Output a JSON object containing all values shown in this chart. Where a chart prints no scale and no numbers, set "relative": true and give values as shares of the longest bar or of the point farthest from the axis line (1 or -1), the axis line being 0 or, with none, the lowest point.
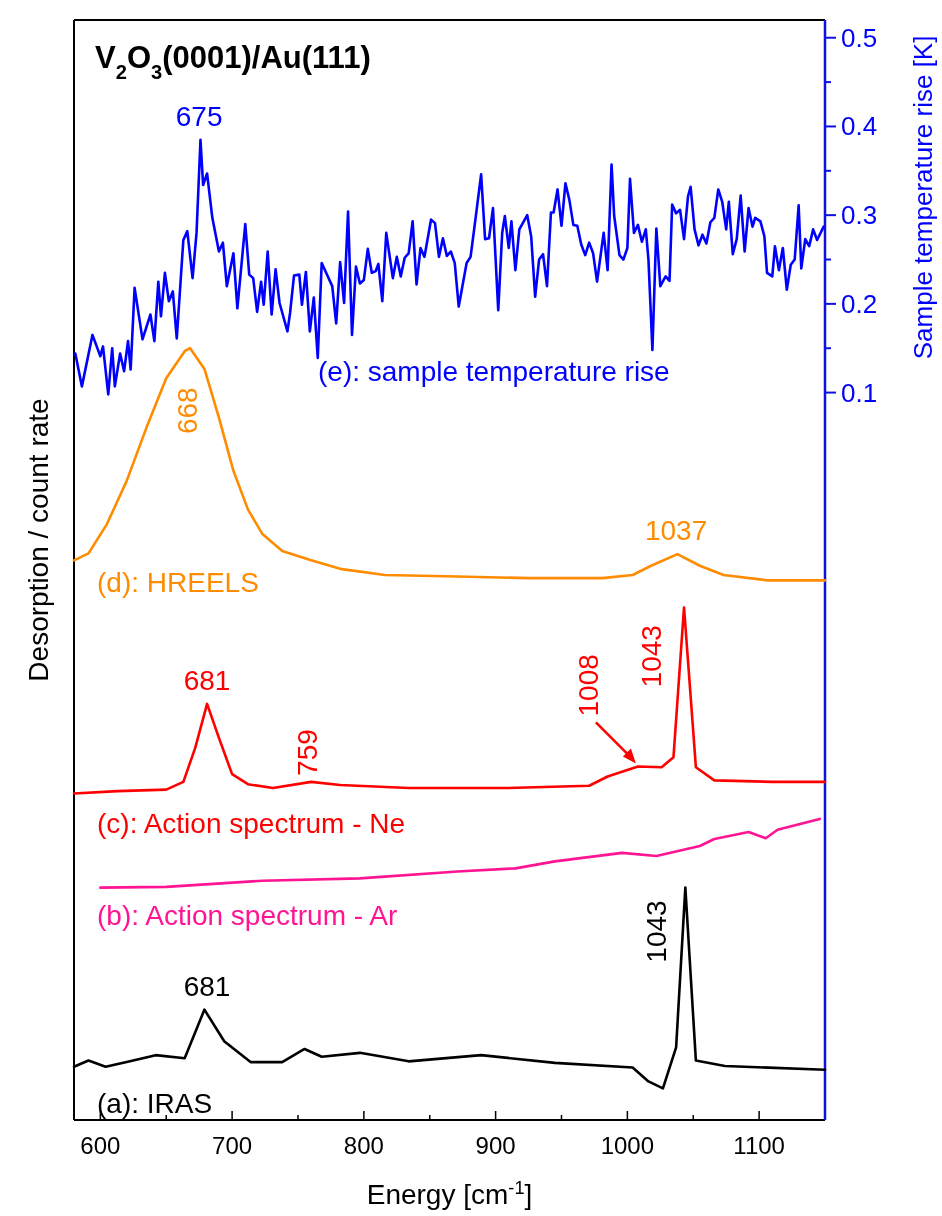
{
  "chart_data": {
    "type": "line",
    "title": "V$_{2}$O$_{3}$(0001)/Au(111)",
    "xlabel": "Energy [cm$^{-1}$]",
    "ylabel": "Desorption / count rate",
    "y2label": "Sample temperature rise [K]",
    "relative": true,
    "xlim": [
      580,
      1150
    ],
    "xticks": [
      600,
      {
        "value": 650,
        "label": null
      },
      700,
      {
        "value": 750,
        "label": null
      },
      800,
      {
        "value": 850,
        "label": null
      },
      900,
      {
        "value": 950,
        "label": null
      },
      1000,
      {
        "value": 1050,
        "label": null
      },
      1100
    ],
    "y2lim": [
      -0.72,
      0.52
    ],
    "y2ticks": [
      0.1,
      {
        "value": 0.15,
        "label": null
      },
      0.2,
      {
        "value": 0.25,
        "label": null
      },
      0.3,
      {
        "value": 0.35,
        "label": null
      },
      0.4,
      {
        "value": 0.45,
        "label": null
      },
      0.5
    ],
    "grid": false,
    "legend": false,
    "marker": "none",
    "line_style": "solid",
    "series": [
      {
        "name": "(a): IRAS",
        "color": "#000000",
        "x": [
          580,
          591,
          604,
          620,
          642,
          664,
          679,
          694,
          714,
          738,
          755,
          768,
          797,
          834,
          889,
          945,
          1004,
          1016,
          1027,
          1037,
          1044,
          1052,
          1074,
          1150
        ],
        "values": [
          0.069,
          0.077,
          0.069,
          0.075,
          0.084,
          0.08,
          0.143,
          0.102,
          0.075,
          0.075,
          0.092,
          0.082,
          0.087,
          0.076,
          0.084,
          0.074,
          0.068,
          0.05,
          0.041,
          0.094,
          0.301,
          0.077,
          0.07,
          0.065
        ]
      },
      {
        "name": "(b): Action spectrum - Ar",
        "color": "#ff1493",
        "x": [
          600,
          650,
          723,
          797,
          871,
          915,
          945,
          996,
          1022,
          1055,
          1066,
          1092,
          1105,
          1114,
          1146
        ],
        "values": [
          0.301,
          0.302,
          0.31,
          0.313,
          0.322,
          0.326,
          0.335,
          0.346,
          0.342,
          0.355,
          0.364,
          0.373,
          0.365,
          0.376,
          0.39
        ]
      },
      {
        "name": "(c): Action spectrum - Ne",
        "color": "#ff0000",
        "x": [
          580,
          613,
          650,
          663,
          672,
          681,
          690,
          700,
          712,
          731,
          760,
          782,
          834,
          908,
          971,
          985,
          1008,
          1026,
          1035,
          1043,
          1052,
          1066,
          1110,
          1150
        ],
        "values": [
          0.423,
          0.426,
          0.428,
          0.438,
          0.482,
          0.539,
          0.495,
          0.448,
          0.435,
          0.43,
          0.438,
          0.434,
          0.43,
          0.43,
          0.433,
          0.445,
          0.458,
          0.457,
          0.47,
          0.664,
          0.457,
          0.44,
          0.438,
          0.438
        ]
      },
      {
        "name": "(d): HREELS",
        "color": "#ff8c00",
        "x": [
          580,
          591,
          605,
          620,
          635,
          650,
          664,
          668,
          679,
          690,
          701,
          712,
          723,
          738,
          760,
          782,
          816,
          871,
          926,
          981,
          1004,
          1018,
          1038,
          1055,
          1073,
          1107,
          1150
        ],
        "values": [
          0.725,
          0.734,
          0.772,
          0.828,
          0.897,
          0.961,
          0.996,
          1,
          0.973,
          0.91,
          0.841,
          0.791,
          0.759,
          0.737,
          0.725,
          0.714,
          0.706,
          0.704,
          0.702,
          0.702,
          0.706,
          0.718,
          0.733,
          0.718,
          0.706,
          0.699,
          0.699
        ]
      },
      {
        "name": "(e): sample temperature rise",
        "color": "#0000ff",
        "axis": "y2",
        "x": [
          581,
          586,
          594,
          600,
          602,
          606,
          609,
          611,
          615,
          618,
          621,
          623,
          626,
          632,
          638,
          641,
          644,
          646,
          649,
          652,
          655,
          658,
          663,
          666,
          670,
          673,
          676,
          678,
          681,
          685,
          690,
          693,
          696,
          701,
          704,
          710,
          713,
          716,
          719,
          722,
          724,
          727,
          730,
          733,
          736,
          742,
          744,
          747,
          751,
          753,
          756,
          759,
          762,
          765,
          768,
          776,
          779,
          782,
          785,
          788,
          791,
          794,
          797,
          800,
          803,
          806,
          809,
          811,
          814,
          817,
          822,
          825,
          828,
          831,
          834,
          837,
          840,
          843,
          846,
          851,
          854,
          857,
          860,
          863,
          866,
          869,
          872,
          878,
          881,
          885,
          889,
          892,
          895,
          898,
          902,
          905,
          907,
          910,
          912,
          915,
          918,
          924,
          927,
          930,
          933,
          936,
          939,
          942,
          944,
          947,
          950,
          953,
          956,
          959,
          962,
          965,
          968,
          971,
          974,
          977,
          982,
          985,
          988,
          990,
          994,
          997,
          1000,
          1002,
          1005,
          1008,
          1011,
          1014,
          1016,
          1019,
          1022,
          1025,
          1029,
          1032,
          1034,
          1037,
          1040,
          1043,
          1046,
          1048,
          1051,
          1054,
          1057,
          1060,
          1063,
          1066,
          1069,
          1072,
          1075,
          1077,
          1080,
          1083,
          1086,
          1089,
          1092,
          1095,
          1097,
          1101,
          1104,
          1106,
          1110,
          1112,
          1115,
          1118,
          1121,
          1124,
          1127,
          1130,
          1132,
          1135,
          1138,
          1141,
          1144,
          1149
        ],
        "values": [
          0.144,
          0.107,
          0.165,
          0.141,
          0.152,
          0.098,
          0.15,
          0.107,
          0.144,
          0.124,
          0.158,
          0.126,
          0.218,
          0.16,
          0.188,
          0.158,
          0.225,
          0.186,
          0.235,
          0.203,
          0.214,
          0.161,
          0.272,
          0.282,
          0.229,
          0.28,
          0.385,
          0.334,
          0.347,
          0.297,
          0.259,
          0.269,
          0.22,
          0.257,
          0.195,
          0.29,
          0.233,
          0.229,
          0.191,
          0.225,
          0.199,
          0.259,
          0.188,
          0.239,
          0.201,
          0.169,
          0.19,
          0.232,
          0.233,
          0.199,
          0.236,
          0.169,
          0.207,
          0.139,
          0.246,
          0.22,
          0.178,
          0.247,
          0.201,
          0.304,
          0.165,
          0.242,
          0.223,
          0.227,
          0.262,
          0.235,
          0.237,
          0.245,
          0.203,
          0.28,
          0.229,
          0.253,
          0.231,
          0.252,
          0.257,
          0.293,
          0.222,
          0.263,
          0.253,
          0.295,
          0.291,
          0.253,
          0.274,
          0.254,
          0.259,
          0.246,
          0.197,
          0.246,
          0.253,
          0.299,
          0.346,
          0.273,
          0.274,
          0.308,
          0.193,
          0.28,
          0.299,
          0.263,
          0.293,
          0.238,
          0.284,
          0.3,
          0.276,
          0.208,
          0.25,
          0.256,
          0.22,
          0.303,
          0.303,
          0.329,
          0.288,
          0.336,
          0.317,
          0.289,
          0.288,
          0.267,
          0.255,
          0.269,
          0.257,
          0.225,
          0.28,
          0.238,
          0.357,
          0.299,
          0.255,
          0.25,
          0.263,
          0.341,
          0.28,
          0.289,
          0.27,
          0.284,
          0.25,
          0.148,
          0.285,
          0.22,
          0.231,
          0.226,
          0.312,
          0.302,
          0.306,
          0.273,
          0.321,
          0.332,
          0.284,
          0.266,
          0.278,
          0.268,
          0.292,
          0.297,
          0.329,
          0.315,
          0.284,
          0.315,
          0.256,
          0.273,
          0.322,
          0.259,
          0.308,
          0.287,
          0.297,
          0.293,
          0.276,
          0.235,
          0.231,
          0.265,
          0.238,
          0.263,
          0.216,
          0.244,
          0.25,
          0.311,
          0.24,
          0.273,
          0.265,
          0.284,
          0.272,
          0.287
        ]
      }
    ],
    "annotations": [
      {
        "text": "675",
        "x": 675,
        "y": 1.27
      },
      {
        "text": "668",
        "x": 668,
        "y": 1
      },
      {
        "text": "1037",
        "x": 1037,
        "y": 0.733
      },
      {
        "text": "681",
        "x": 681,
        "y": 0.539
      },
      {
        "text": "759",
        "x": 759,
        "y": 0.438
      },
      {
        "text": "1008",
        "x": 1008,
        "y": 0.458
      },
      {
        "text": "1043",
        "x": 1043,
        "y": 0.664
      },
      {
        "text": "681",
        "x": 681,
        "y": 0.143
      },
      {
        "text": "1043",
        "x": 1043,
        "y": 0.301
      }
    ]
  }
}
